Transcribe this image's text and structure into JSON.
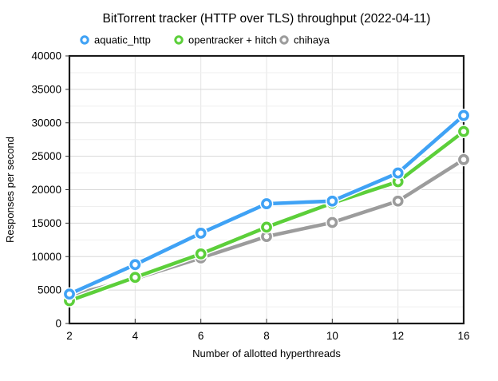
{
  "chart_data": {
    "type": "line",
    "title": "BitTorrent tracker (HTTP over TLS) throughput (2022-04-11)",
    "xlabel": "Number of allotted hyperthreads",
    "ylabel": "Responses per second",
    "x": [
      2,
      4,
      6,
      8,
      10,
      12,
      16
    ],
    "x_note": "categorical axis, points evenly spaced",
    "ylim": [
      0,
      40000
    ],
    "y_label_step": 5000,
    "y_grid_step": 2500,
    "grid": "horizontal every 2500 (major every 5000) plus vertical per category",
    "legend_position": "top",
    "series": [
      {
        "name": "aquatic_http",
        "color": "#3fa2f5",
        "values": [
          4400,
          8800,
          13500,
          17900,
          18300,
          22500,
          31100
        ]
      },
      {
        "name": "opentracker + hitch",
        "color": "#5ccf3a",
        "values": [
          3400,
          6900,
          10400,
          14400,
          18000,
          21200,
          28700
        ]
      },
      {
        "name": "chihaya",
        "color": "#9c9c9c",
        "values": [
          4200,
          6700,
          9800,
          13000,
          15100,
          18300,
          24500
        ]
      }
    ],
    "style": {
      "marker": "white-filled ring",
      "frame_color": "#1a1a1a",
      "grid_major_color": "#d8d8d8",
      "grid_minor_color": "#efefef",
      "grid_vertical_color": "#e4e4e4",
      "background": "#ffffff"
    }
  }
}
